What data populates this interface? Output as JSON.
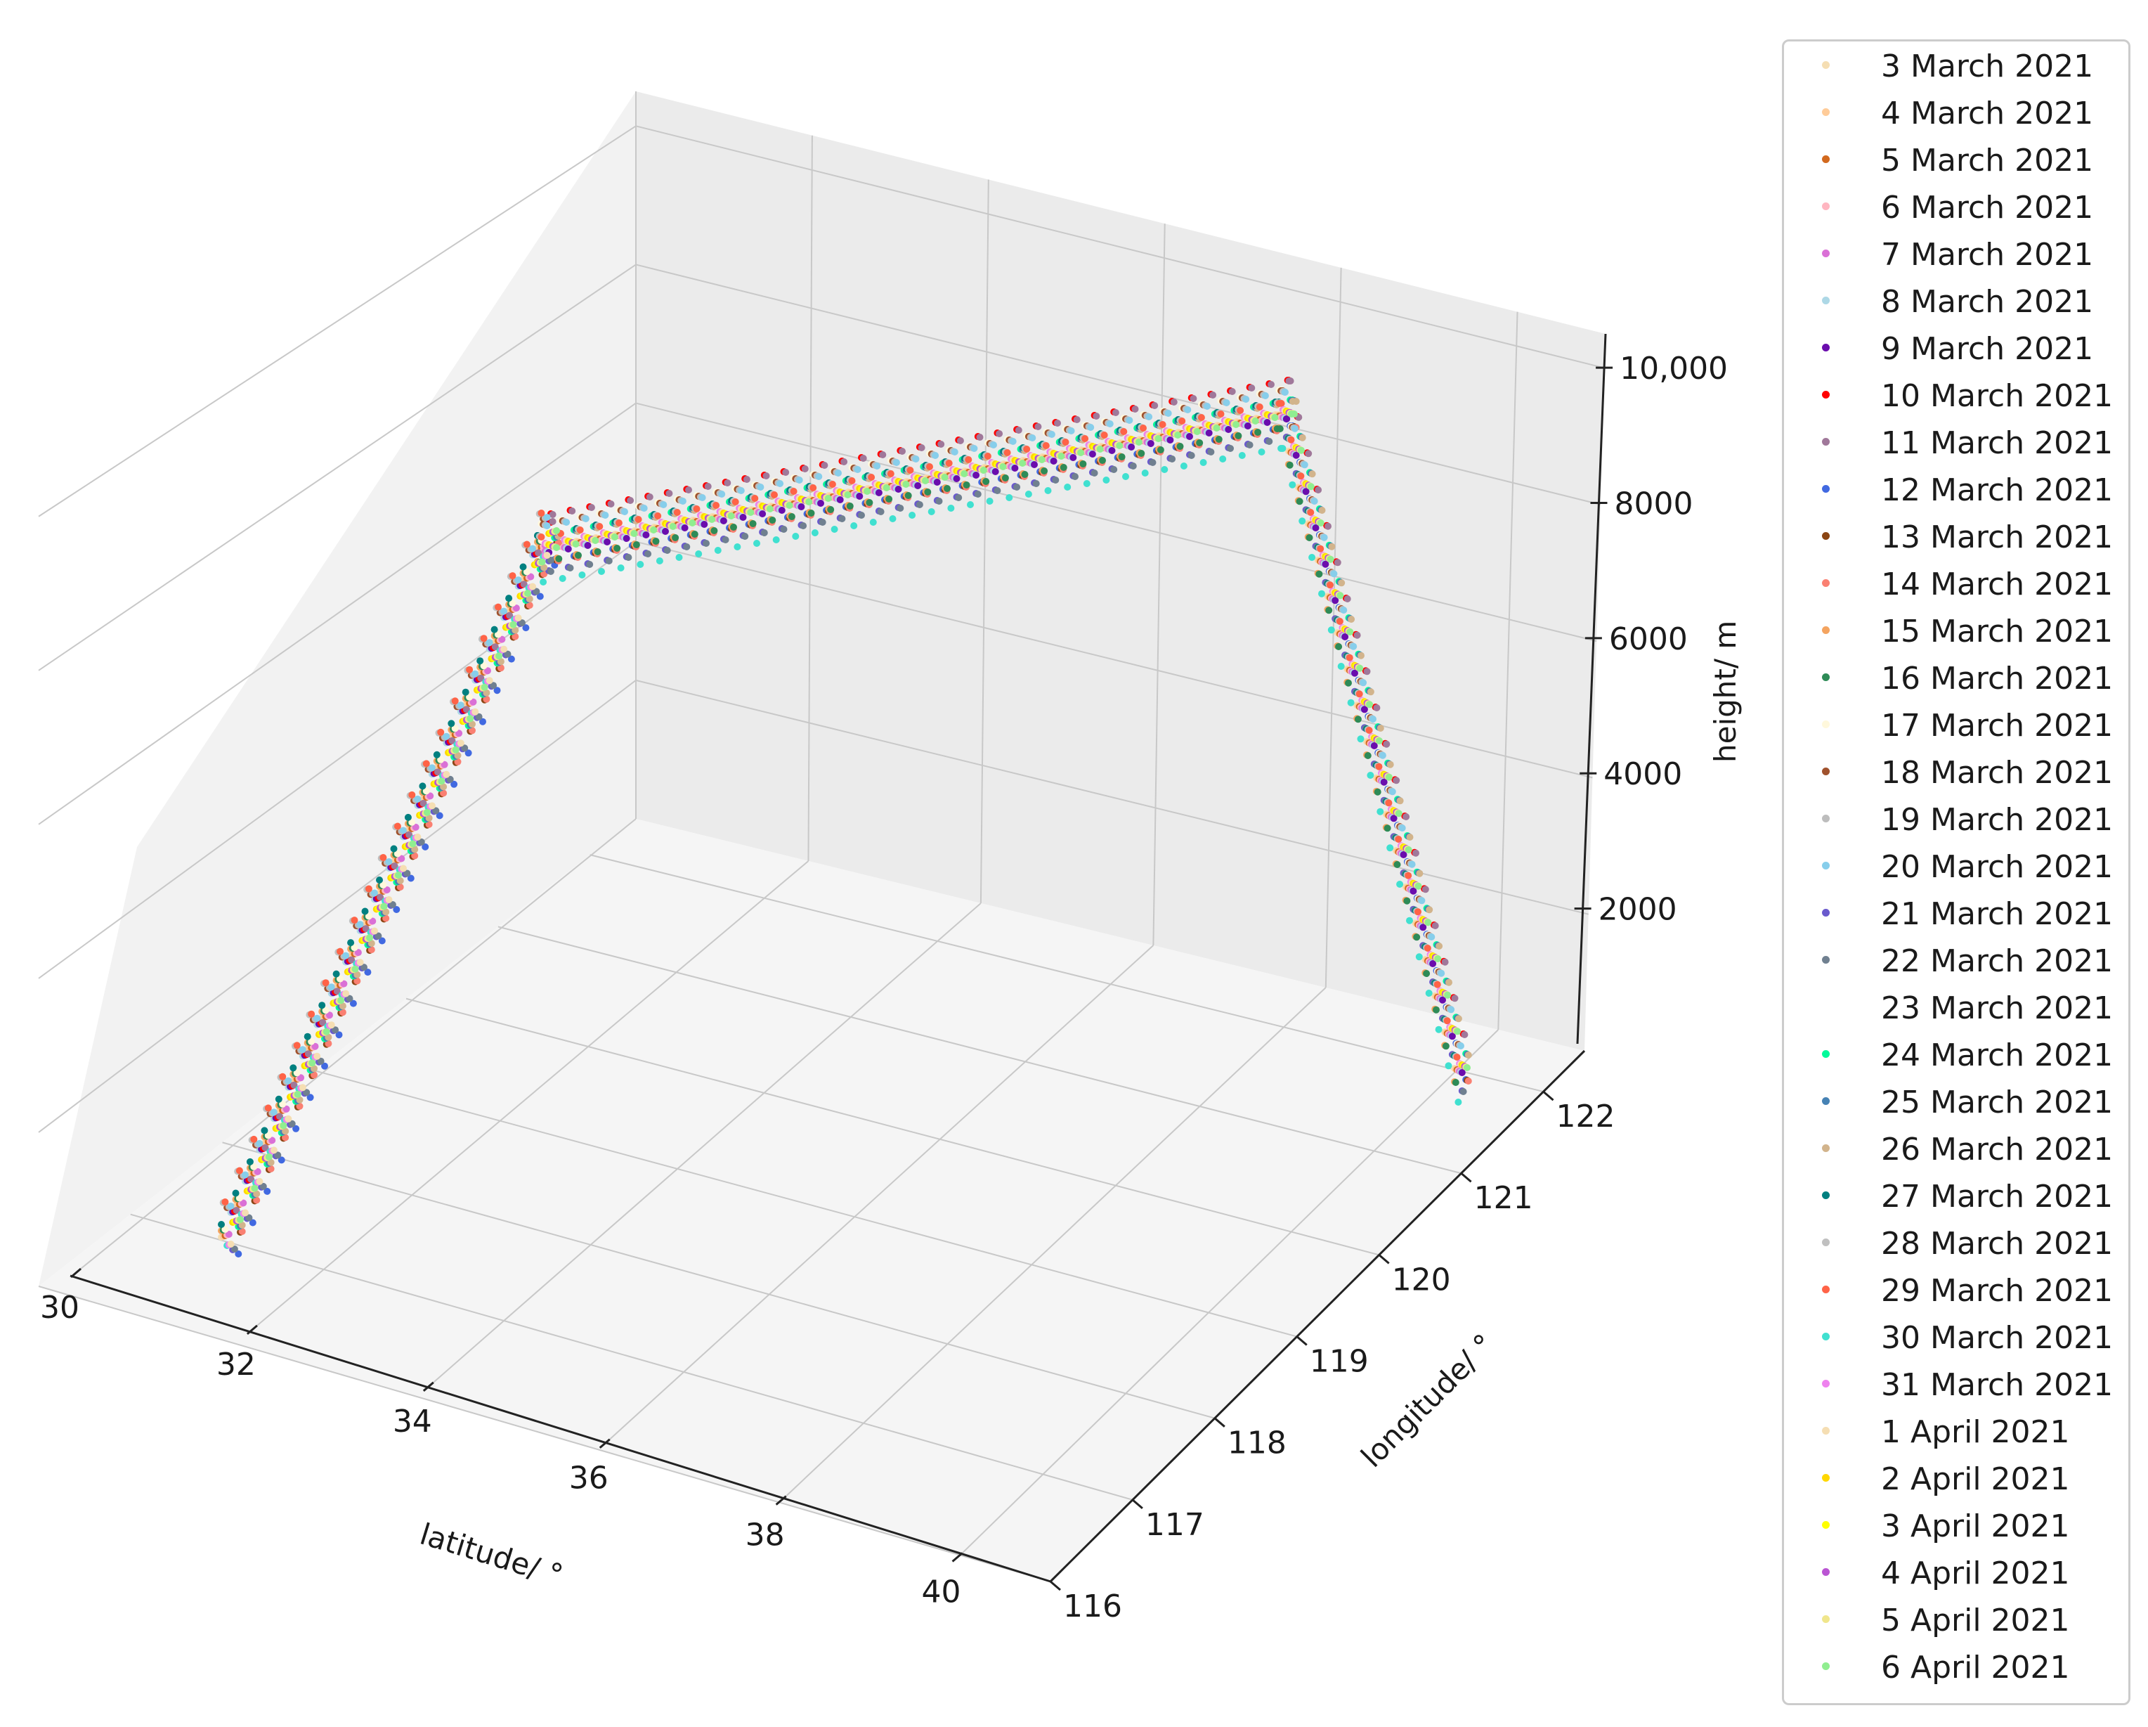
{
  "chart_data": {
    "type": "scatter",
    "projection": "3d",
    "title": "",
    "xlabel": "latitude/ °",
    "ylabel": "longitude/ °",
    "zlabel": "height/ m",
    "xlim": [
      30,
      41
    ],
    "ylim": [
      116,
      122.5
    ],
    "zlim": [
      0,
      10500
    ],
    "xticks": [
      "30",
      "32",
      "34",
      "36",
      "38",
      "40"
    ],
    "xtick_values": [
      30,
      32,
      34,
      36,
      38,
      40
    ],
    "yticks": [
      "116",
      "117",
      "118",
      "119",
      "120",
      "121",
      "122"
    ],
    "ytick_values": [
      116,
      117,
      118,
      119,
      120,
      121,
      122
    ],
    "zticks": [
      "2000",
      "4000",
      "6000",
      "8000",
      "10,000"
    ],
    "ztick_values": [
      2000,
      4000,
      6000,
      8000,
      10000
    ],
    "grid": true,
    "legend_position": "right",
    "series": [
      {
        "name": "3 March 2021",
        "color": "#f5deb3"
      },
      {
        "name": "4 March 2021",
        "color": "#ffcc99"
      },
      {
        "name": "5 March 2021",
        "color": "#d2691e"
      },
      {
        "name": "6 March 2021",
        "color": "#ffb6c1"
      },
      {
        "name": "7 March 2021",
        "color": "#da70d6"
      },
      {
        "name": "8 March 2021",
        "color": "#add8e6"
      },
      {
        "name": "9 March 2021",
        "color": "#6a0dad"
      },
      {
        "name": "10 March 2021",
        "color": "#ff0000"
      },
      {
        "name": "11 March 2021",
        "color": "#a0789a"
      },
      {
        "name": "12 March 2021",
        "color": "#4169e1"
      },
      {
        "name": "13 March 2021",
        "color": "#8b4513"
      },
      {
        "name": "14 March 2021",
        "color": "#fa8072"
      },
      {
        "name": "15 March 2021",
        "color": "#f4a460"
      },
      {
        "name": "16 March 2021",
        "color": "#2e8b57"
      },
      {
        "name": "17 March 2021",
        "color": "#fff8dc"
      },
      {
        "name": "18 March 2021",
        "color": "#a0522d"
      },
      {
        "name": "19 March 2021",
        "color": "#bdbdbd"
      },
      {
        "name": "20 March 2021",
        "color": "#87ceeb"
      },
      {
        "name": "21 March 2021",
        "color": "#6a5acd"
      },
      {
        "name": "22 March 2021",
        "color": "#708090"
      },
      {
        "name": "23 March 2021",
        "color": "#ffffff"
      },
      {
        "name": "24 March 2021",
        "color": "#00fa9a"
      },
      {
        "name": "25 March 2021",
        "color": "#4682b4"
      },
      {
        "name": "26 March 2021",
        "color": "#d2b48c"
      },
      {
        "name": "27 March 2021",
        "color": "#008080"
      },
      {
        "name": "28 March 2021",
        "color": "#c0c0c0"
      },
      {
        "name": "29 March 2021",
        "color": "#ff6347"
      },
      {
        "name": "30 March 2021",
        "color": "#40e0d0"
      },
      {
        "name": "31 March 2021",
        "color": "#ee82ee"
      },
      {
        "name": "1 April 2021",
        "color": "#f5deb3"
      },
      {
        "name": "2 April 2021",
        "color": "#ffd700"
      },
      {
        "name": "3 April 2021",
        "color": "#ffff00"
      },
      {
        "name": "4 April 2021",
        "color": "#ba55d3"
      },
      {
        "name": "5 April 2021",
        "color": "#f0e68c"
      },
      {
        "name": "6 April 2021",
        "color": "#90ee90"
      }
    ]
  }
}
